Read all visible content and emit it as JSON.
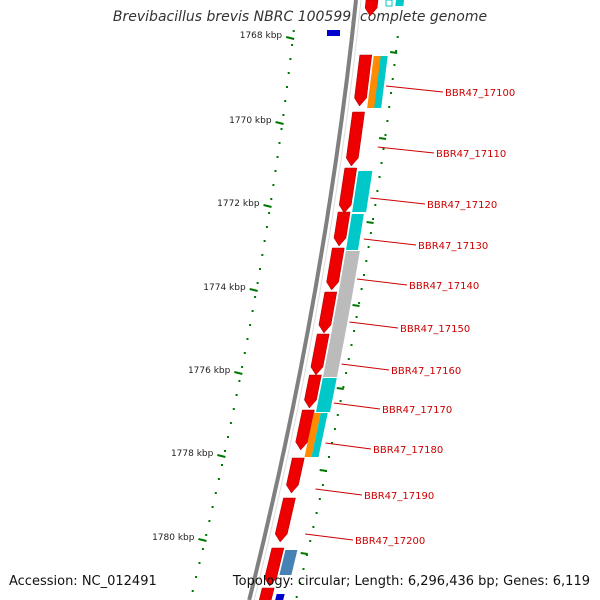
{
  "title": "Brevibacillus brevis NBRC 100599, complete genome",
  "footer": {
    "accession": "Accession: NC_012491",
    "topology": "Topology: circular; Length: 6,296,436 bp; Genes: 6,119"
  },
  "colors": {
    "backbone": "#808080",
    "forward_gene": "#ee0000",
    "feature_cyan": "#00c8c8",
    "feature_orange": "#ff8c00",
    "feature_gray": "#bbbbbb",
    "feature_blue": "#0000cc",
    "feature_steel": "#4682b4",
    "tick": "#007700",
    "label": "#cc0000"
  },
  "kbp_ticks": [
    "1768 kbp",
    "1770 kbp",
    "1772 kbp",
    "1774 kbp",
    "1776 kbp",
    "1778 kbp",
    "1780 kbp"
  ],
  "gene_labels": [
    "BBR47_17100",
    "BBR47_17110",
    "BBR47_17120",
    "BBR47_17130",
    "BBR47_17140",
    "BBR47_17150",
    "BBR47_17160",
    "BBR47_17170",
    "BBR47_17180",
    "BBR47_17190",
    "BBR47_17200"
  ]
}
